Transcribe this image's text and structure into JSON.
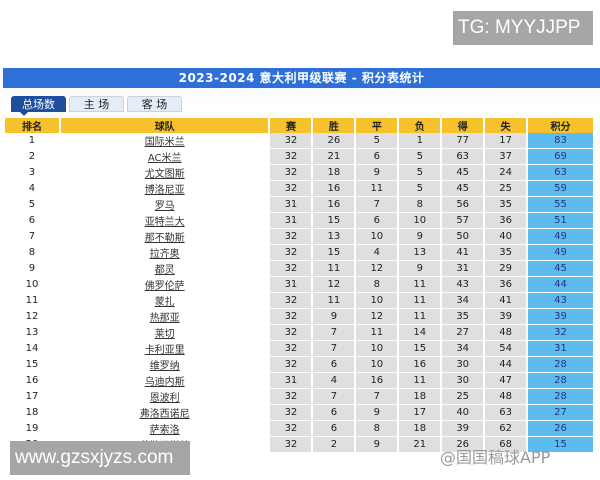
{
  "watermark_top": "TG: MYYJJPP",
  "watermark_bottom": "www.gzsxjyzs.com",
  "overlay_watermark": "@国国稿球APP",
  "title": "2023-2024 意大利甲级联赛 - 积分表统计",
  "tabs": [
    {
      "label": "总场数",
      "active": true
    },
    {
      "label": "主 场"
    },
    {
      "label": "客 场"
    }
  ],
  "colors": {
    "title_bar": "#2e6fd8",
    "header": "#f5c22b",
    "points": "#5cbcf0",
    "stat_cell": "#dfdfdf"
  },
  "columns": [
    "排名",
    "球队",
    "赛",
    "胜",
    "平",
    "负",
    "得",
    "失",
    "积分"
  ],
  "rows": [
    [
      "1",
      "国际米兰",
      "32",
      "26",
      "5",
      "1",
      "77",
      "17",
      "83"
    ],
    [
      "2",
      "AC米兰",
      "32",
      "21",
      "6",
      "5",
      "63",
      "37",
      "69"
    ],
    [
      "3",
      "尤文图斯",
      "32",
      "18",
      "9",
      "5",
      "45",
      "24",
      "63"
    ],
    [
      "4",
      "博洛尼亚",
      "32",
      "16",
      "11",
      "5",
      "45",
      "25",
      "59"
    ],
    [
      "5",
      "罗马",
      "31",
      "16",
      "7",
      "8",
      "56",
      "35",
      "55"
    ],
    [
      "6",
      "亚特兰大",
      "31",
      "15",
      "6",
      "10",
      "57",
      "36",
      "51"
    ],
    [
      "7",
      "那不勒斯",
      "32",
      "13",
      "10",
      "9",
      "50",
      "40",
      "49"
    ],
    [
      "8",
      "拉齐奥",
      "32",
      "15",
      "4",
      "13",
      "41",
      "35",
      "49"
    ],
    [
      "9",
      "都灵",
      "32",
      "11",
      "12",
      "9",
      "31",
      "29",
      "45"
    ],
    [
      "10",
      "佛罗伦萨",
      "31",
      "12",
      "8",
      "11",
      "43",
      "36",
      "44"
    ],
    [
      "11",
      "蒙扎",
      "32",
      "11",
      "10",
      "11",
      "34",
      "41",
      "43"
    ],
    [
      "12",
      "热那亚",
      "32",
      "9",
      "12",
      "11",
      "35",
      "39",
      "39"
    ],
    [
      "13",
      "莱切",
      "32",
      "7",
      "11",
      "14",
      "27",
      "48",
      "32"
    ],
    [
      "14",
      "卡利亚里",
      "32",
      "7",
      "10",
      "15",
      "34",
      "54",
      "31"
    ],
    [
      "15",
      "维罗纳",
      "32",
      "6",
      "10",
      "16",
      "30",
      "44",
      "28"
    ],
    [
      "16",
      "乌迪内斯",
      "31",
      "4",
      "16",
      "11",
      "30",
      "47",
      "28"
    ],
    [
      "17",
      "恩波利",
      "32",
      "7",
      "7",
      "18",
      "25",
      "48",
      "28"
    ],
    [
      "18",
      "弗洛西诺尼",
      "32",
      "6",
      "9",
      "17",
      "40",
      "63",
      "27"
    ],
    [
      "19",
      "萨索洛",
      "32",
      "6",
      "8",
      "18",
      "39",
      "62",
      "26"
    ],
    [
      "20",
      "萨勒尼塔纳",
      "32",
      "2",
      "9",
      "21",
      "26",
      "68",
      "15"
    ]
  ]
}
